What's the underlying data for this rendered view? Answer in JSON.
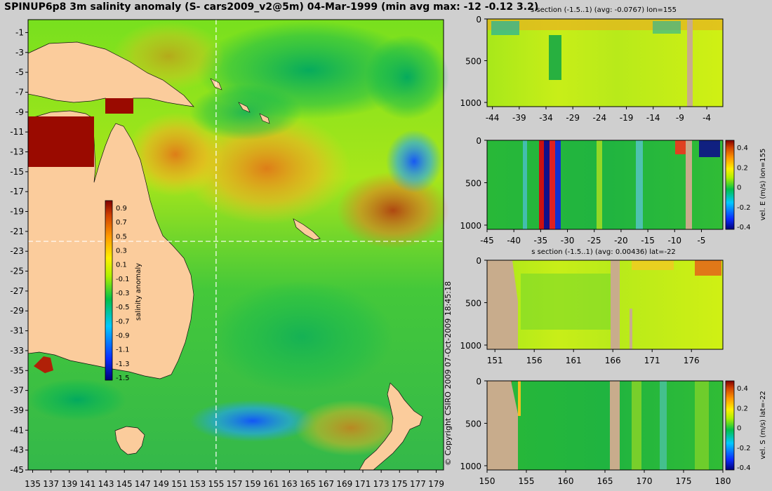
{
  "title": "SPINUP6p8 3m salinity anomaly (S- cars2009_v2@5m) 04-Mar-1999 (min avg max: -12 -0.12 3.2)",
  "copyright": "© Copyright CSIRO 2009   07-Oct-2009 18:45:18",
  "colors": {
    "land_map": "#fbcc9c",
    "land_section": "#c8ac8c",
    "background": "#cfcfcf"
  },
  "chart_data": [
    {
      "type": "heatmap",
      "name": "map",
      "xticks": [
        135,
        137,
        139,
        141,
        143,
        145,
        147,
        149,
        151,
        153,
        155,
        157,
        159,
        161,
        163,
        165,
        167,
        169,
        171,
        173,
        175,
        177,
        179
      ],
      "yticks": [
        -1,
        -3,
        -5,
        -7,
        -9,
        -11,
        -13,
        -15,
        -17,
        -19,
        -21,
        -23,
        -25,
        -27,
        -29,
        -31,
        -33,
        -35,
        -37,
        -39,
        -41,
        -43,
        -45
      ],
      "xlim": [
        134.5,
        179.8
      ],
      "ylim": [
        -45,
        0.3
      ],
      "crosshair": {
        "lon": 155,
        "lat": -22
      },
      "colorbar": {
        "label": "salinity anomaly",
        "ticks": [
          "0.9",
          "0.7",
          "0.5",
          "0.3",
          "0.1",
          "-0.1",
          "-0.3",
          "-0.5",
          "-0.7",
          "-0.9",
          "-1.1",
          "-1.3",
          "-1.5"
        ]
      }
    },
    {
      "type": "heatmap",
      "name": "section-1",
      "title": "s section (-1.5..1) (avg: -0.0767) lon=155",
      "xticks": [
        "-44",
        "-39",
        "-34",
        "-29",
        "-24",
        "-19",
        "-14",
        "-9",
        "-4"
      ],
      "yticks": [
        "0",
        "500",
        "1000"
      ],
      "xlim": [
        -45,
        -1
      ],
      "ylim": [
        1050,
        0
      ]
    },
    {
      "type": "heatmap",
      "name": "section-2",
      "title": "",
      "xticks": [
        "-45",
        "-40",
        "-35",
        "-30",
        "-25",
        "-20",
        "-15",
        "-10",
        "-5"
      ],
      "yticks": [
        "0",
        "500",
        "1000"
      ],
      "xlim": [
        -45,
        -1
      ],
      "ylim": [
        1050,
        0
      ],
      "colorbar": {
        "label": "vel. E (m/s) lon=155",
        "ticks": [
          "0.4",
          "0.2",
          "0",
          "-0.2",
          "-0.4"
        ]
      }
    },
    {
      "type": "heatmap",
      "name": "section-3",
      "title": "s section (-1.5..1) (avg: 0.00436) lat=-22",
      "xticks": [
        "151",
        "156",
        "161",
        "166",
        "171",
        "176"
      ],
      "yticks": [
        "0",
        "500",
        "1000"
      ],
      "xlim": [
        150,
        180
      ],
      "ylim": [
        1050,
        0
      ]
    },
    {
      "type": "heatmap",
      "name": "section-4",
      "title": "",
      "xticks": [
        "150",
        "155",
        "160",
        "165",
        "170",
        "175",
        "180"
      ],
      "yticks": [
        "0",
        "500",
        "1000"
      ],
      "xlim": [
        150,
        180
      ],
      "ylim": [
        1050,
        0
      ],
      "colorbar": {
        "label": "vel. S (m/s) lat=-22",
        "ticks": [
          "0.4",
          "0.2",
          "0",
          "-0.2",
          "-0.4"
        ]
      }
    }
  ]
}
